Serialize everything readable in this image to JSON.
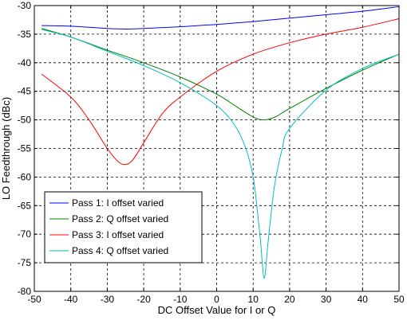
{
  "chart_data": {
    "type": "line",
    "title": "",
    "xlabel": "DC Offset Value for I or Q",
    "ylabel": "LO Feedthrough (dBc)",
    "xlim": [
      -50,
      50
    ],
    "ylim": [
      -80,
      -30
    ],
    "xticks": [
      -50,
      -40,
      -30,
      -20,
      -10,
      0,
      10,
      20,
      30,
      40,
      50
    ],
    "yticks": [
      -80,
      -75,
      -70,
      -65,
      -60,
      -55,
      -50,
      -45,
      -40,
      -35,
      -30
    ],
    "xtick_labels": [
      "-50",
      "-40",
      "-30",
      "-20",
      "-10",
      "0",
      "10",
      "20",
      "30",
      "40",
      "50"
    ],
    "ytick_labels": [
      "-80",
      "-75",
      "-70",
      "-65",
      "-60",
      "-55",
      "-50",
      "-45",
      "-40",
      "-35",
      "-30"
    ],
    "grid": true,
    "legend_position": "bottom-left",
    "series": [
      {
        "name": "Pass 1: I offset varied",
        "color": "#0000ff",
        "x": [
          -48,
          -40,
          -30,
          -25,
          -20,
          -10,
          0,
          10,
          20,
          30,
          40,
          50
        ],
        "y": [
          -33.5,
          -33.6,
          -34.0,
          -34.1,
          -34.0,
          -33.7,
          -33.3,
          -32.8,
          -32.2,
          -31.6,
          -31.0,
          -30.2
        ]
      },
      {
        "name": "Pass 2: Q offset varied",
        "color": "#008000",
        "x": [
          -48,
          -40,
          -30,
          -20,
          -10,
          0,
          5,
          10,
          13,
          16,
          20,
          30,
          40,
          50
        ],
        "y": [
          -34.0,
          -35.5,
          -37.8,
          -40.0,
          -42.5,
          -45.5,
          -47.5,
          -49.5,
          -50.0,
          -49.5,
          -48.0,
          -44.5,
          -41.3,
          -38.5
        ]
      },
      {
        "name": "Pass 3: I offset varied",
        "color": "#ff0000",
        "x": [
          -48,
          -40,
          -35,
          -30,
          -27,
          -25,
          -23,
          -20,
          -15,
          -10,
          0,
          10,
          20,
          30,
          40,
          50
        ],
        "y": [
          -42.0,
          -46.0,
          -50.0,
          -55.0,
          -57.3,
          -57.8,
          -57.0,
          -54.0,
          -49.0,
          -46.0,
          -41.5,
          -38.5,
          -36.5,
          -35.0,
          -33.8,
          -32.3
        ]
      },
      {
        "name": "Pass 4: Q offset varied",
        "color": "#00bfbf",
        "x": [
          -48,
          -40,
          -30,
          -20,
          -10,
          0,
          5,
          8,
          10,
          11,
          12,
          13,
          14,
          15,
          16,
          18,
          20,
          30,
          40,
          50
        ],
        "y": [
          -34.2,
          -35.5,
          -38.0,
          -40.5,
          -43.5,
          -47.5,
          -51.0,
          -55.0,
          -60.0,
          -65.0,
          -71.0,
          -77.7,
          -72.0,
          -66.0,
          -61.0,
          -55.0,
          -51.5,
          -44.8,
          -41.0,
          -38.5
        ]
      }
    ]
  }
}
